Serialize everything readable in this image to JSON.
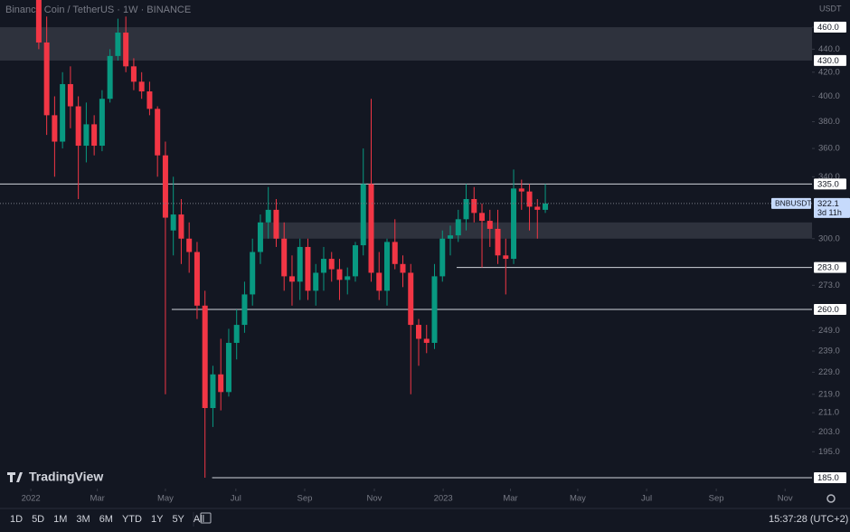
{
  "chart_data": {
    "type": "candlestick",
    "title": "Binance Coin / TetherUS · 1W · BINANCE",
    "currency": "USDT",
    "symbol": "BNBUSDT",
    "countdown": "3d 11h",
    "time": "15:37:28 (UTC+2)",
    "brand": "TradingView",
    "ranges": [
      "1D",
      "5D",
      "1M",
      "3M",
      "6M",
      "YTD",
      "1Y",
      "5Y",
      "All"
    ],
    "log_scale": true,
    "colors": {
      "up": "#089981",
      "down": "#f23645"
    },
    "x": [
      1,
      2,
      3,
      4,
      5,
      6,
      7,
      8,
      9,
      10,
      11,
      12,
      13,
      14,
      15,
      16,
      17,
      18,
      19,
      20,
      21,
      22,
      23,
      24,
      25,
      26,
      27,
      28,
      29,
      30,
      31,
      32,
      33,
      34,
      35,
      36,
      37,
      38,
      39,
      40,
      41,
      42,
      43,
      44,
      45,
      46,
      47,
      48,
      49,
      50,
      51,
      52,
      53,
      54,
      55,
      56,
      57,
      58,
      59,
      60,
      61,
      62,
      63,
      64,
      65
    ],
    "open": [
      500,
      446,
      385,
      365,
      410,
      392,
      362,
      378,
      362,
      398,
      434,
      455,
      425,
      412,
      404,
      390,
      355,
      305,
      315,
      300,
      292,
      262,
      213,
      228,
      220,
      243,
      252,
      268,
      292,
      310,
      318,
      300,
      278,
      275,
      295,
      270,
      280,
      288,
      282,
      276,
      278,
      296,
      335,
      280,
      270,
      298,
      285,
      280,
      252,
      245,
      243,
      278,
      300,
      302,
      312,
      325,
      316,
      311,
      306,
      290,
      288,
      332,
      330,
      320,
      318
    ],
    "high": [
      530,
      470,
      400,
      420,
      425,
      400,
      395,
      385,
      405,
      440,
      468,
      470,
      432,
      420,
      412,
      392,
      365,
      340,
      325,
      310,
      298,
      270,
      232,
      245,
      250,
      260,
      275,
      300,
      315,
      333,
      325,
      310,
      290,
      300,
      300,
      285,
      295,
      292,
      288,
      283,
      298,
      360,
      398,
      292,
      300,
      312,
      290,
      285,
      255,
      252,
      285,
      305,
      308,
      318,
      335,
      333,
      322,
      318,
      318,
      300,
      345,
      338,
      335,
      325,
      335
    ],
    "low": [
      440,
      370,
      340,
      360,
      375,
      325,
      350,
      355,
      358,
      395,
      430,
      420,
      405,
      398,
      385,
      340,
      219,
      290,
      285,
      280,
      255,
      185,
      205,
      212,
      218,
      235,
      248,
      262,
      285,
      300,
      295,
      270,
      262,
      265,
      265,
      262,
      270,
      275,
      265,
      268,
      275,
      290,
      275,
      265,
      262,
      282,
      272,
      219,
      232,
      238,
      240,
      275,
      290,
      298,
      305,
      310,
      283,
      295,
      285,
      268,
      285,
      318,
      305,
      300,
      316
    ],
    "close": [
      446,
      385,
      365,
      410,
      392,
      362,
      378,
      362,
      398,
      434,
      455,
      425,
      412,
      404,
      390,
      355,
      313,
      315,
      300,
      292,
      262,
      213,
      228,
      220,
      243,
      252,
      268,
      292,
      310,
      318,
      300,
      278,
      275,
      295,
      270,
      280,
      288,
      282,
      276,
      278,
      296,
      335,
      280,
      270,
      298,
      285,
      280,
      252,
      245,
      243,
      278,
      300,
      302,
      312,
      325,
      316,
      311,
      306,
      290,
      288,
      332,
      330,
      320,
      318,
      322.1
    ],
    "xlim": [
      -3.9,
      98.7
    ],
    "ylim": [
      181,
      486
    ],
    "xticks": [
      {
        "value": 0,
        "label": "2022"
      },
      {
        "value": 8.4,
        "label": "Mar"
      },
      {
        "value": 17,
        "label": "May"
      },
      {
        "value": 25.9,
        "label": "Jul"
      },
      {
        "value": 34.6,
        "label": "Sep"
      },
      {
        "value": 43.4,
        "label": "Nov"
      },
      {
        "value": 52.1,
        "label": "2023"
      },
      {
        "value": 60.6,
        "label": "Mar"
      },
      {
        "value": 69.1,
        "label": "May"
      },
      {
        "value": 77.8,
        "label": "Jul"
      },
      {
        "value": 86.6,
        "label": "Sep"
      },
      {
        "value": 95.3,
        "label": "Nov"
      }
    ],
    "yticks": [
      {
        "value": 460,
        "label": "460.0"
      },
      {
        "value": 440,
        "label": "440.0"
      },
      {
        "value": 420,
        "label": "420.0"
      },
      {
        "value": 400,
        "label": "400.0"
      },
      {
        "value": 380,
        "label": "380.0"
      },
      {
        "value": 360,
        "label": "360.0"
      },
      {
        "value": 340,
        "label": "340.0"
      },
      {
        "value": 300,
        "label": "300.0"
      },
      {
        "value": 273,
        "label": "273.0"
      },
      {
        "value": 249,
        "label": "249.0"
      },
      {
        "value": 239,
        "label": "239.0"
      },
      {
        "value": 229,
        "label": "229.0"
      },
      {
        "value": 219,
        "label": "219.0"
      },
      {
        "value": 211,
        "label": "211.0"
      },
      {
        "value": 203,
        "label": "203.0"
      },
      {
        "value": 195,
        "label": "195.0"
      }
    ],
    "levels": [
      {
        "value": 460,
        "label": "460.0"
      },
      {
        "value": 430,
        "label": "430.0"
      },
      {
        "value": 335,
        "label": "335.0",
        "from": -3.9
      },
      {
        "value": 283,
        "label": "283.0",
        "from": 53.8
      },
      {
        "value": 260,
        "label": "260.0",
        "from": 17.8
      },
      {
        "value": 185,
        "label": "185.0",
        "from": 22.9
      }
    ],
    "zones": [
      {
        "low": 430,
        "high": 460,
        "from": -3.9
      },
      {
        "low": 300,
        "high": 310,
        "from": 28.9
      }
    ]
  }
}
